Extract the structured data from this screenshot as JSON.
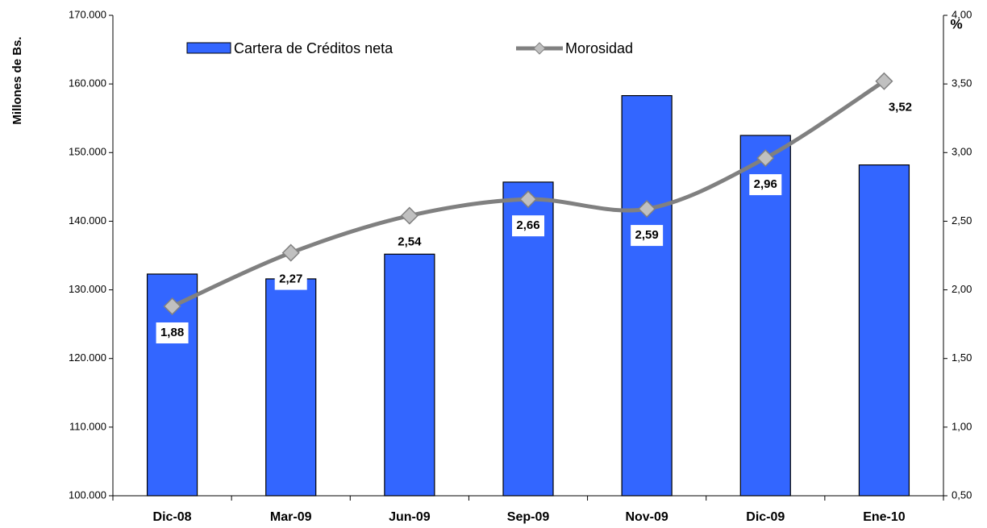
{
  "chart_data": {
    "type": "bar_line",
    "y_label": "Millones de Bs.",
    "y2_label": "%",
    "categories": [
      "Dic-08",
      "Mar-09",
      "Jun-09",
      "Sep-09",
      "Nov-09",
      "Dic-09",
      "Ene-10"
    ],
    "series": [
      {
        "name": "Cartera de Créditos neta",
        "type": "bar",
        "color": "#3366ff",
        "values": [
          132300,
          131600,
          135200,
          145700,
          158300,
          152500,
          148200
        ]
      },
      {
        "name": "Morosidad",
        "type": "line",
        "axis": "y2",
        "color": "#808080",
        "marker_color": "#c0c0c0",
        "values": [
          1.88,
          2.27,
          2.54,
          2.66,
          2.59,
          2.96,
          3.52
        ],
        "value_labels": [
          "1,88",
          "2,27",
          "2,54",
          "2,66",
          "2,59",
          "2,96",
          "3,52"
        ]
      }
    ],
    "ylim": [
      100000,
      170000
    ],
    "yticks": [
      {
        "value": 100000,
        "label": "100.000"
      },
      {
        "value": 110000,
        "label": "110.000"
      },
      {
        "value": 120000,
        "label": "120.000"
      },
      {
        "value": 130000,
        "label": "130.000"
      },
      {
        "value": 140000,
        "label": "140.000"
      },
      {
        "value": 150000,
        "label": "150.000"
      },
      {
        "value": 160000,
        "label": "160.000"
      },
      {
        "value": 170000,
        "label": "170.000"
      }
    ],
    "y2lim": [
      0.5,
      4.0
    ],
    "y2ticks": [
      {
        "value": 0.5,
        "label": "0,50"
      },
      {
        "value": 1.0,
        "label": "1,00"
      },
      {
        "value": 1.5,
        "label": "1,50"
      },
      {
        "value": 2.0,
        "label": "2,00"
      },
      {
        "value": 2.5,
        "label": "2,50"
      },
      {
        "value": 3.0,
        "label": "3,00"
      },
      {
        "value": 3.5,
        "label": "3,50"
      },
      {
        "value": 4.0,
        "label": "4,00"
      }
    ],
    "grid": false,
    "legend": "top"
  }
}
